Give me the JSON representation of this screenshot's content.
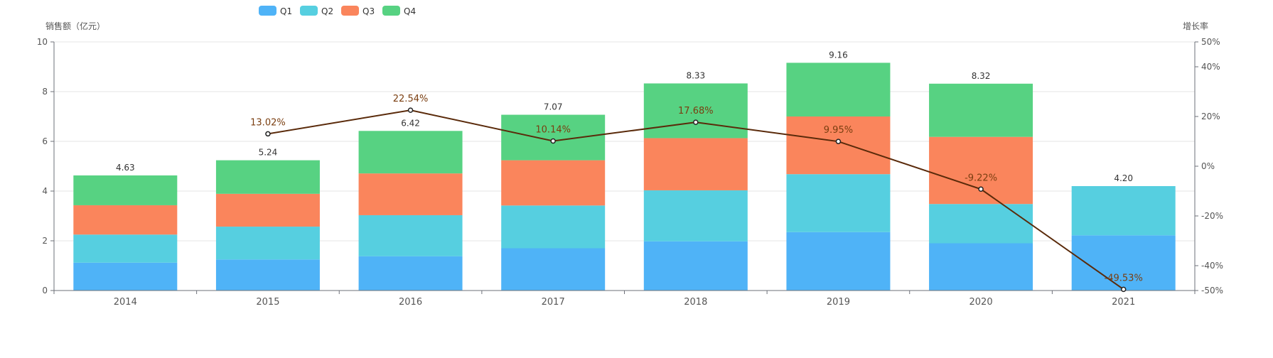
{
  "chart_data": {
    "type": "bar",
    "stacked": true,
    "categories": [
      "2014",
      "2015",
      "2016",
      "2017",
      "2018",
      "2019",
      "2020",
      "2021"
    ],
    "series": [
      {
        "name": "Q1",
        "color": "#4FB3F7",
        "values": [
          1.12,
          1.25,
          1.38,
          1.7,
          1.98,
          2.35,
          1.9,
          2.22
        ]
      },
      {
        "name": "Q2",
        "color": "#56CFE0",
        "values": [
          1.13,
          1.32,
          1.65,
          1.72,
          2.05,
          2.33,
          1.58,
          1.98
        ]
      },
      {
        "name": "Q3",
        "color": "#FA855C",
        "values": [
          1.18,
          1.32,
          1.68,
          1.82,
          2.1,
          2.32,
          2.7,
          0
        ]
      },
      {
        "name": "Q4",
        "color": "#57D282",
        "values": [
          1.2,
          1.35,
          1.71,
          1.83,
          2.2,
          2.16,
          2.14,
          0
        ]
      }
    ],
    "totals": [
      "4.63",
      "5.24",
      "6.42",
      "7.07",
      "8.33",
      "9.16",
      "8.32",
      "4.20"
    ],
    "growth": {
      "name": "增长率",
      "color": "#5A2A0A",
      "label_color": "#7A3E10",
      "values": [
        null,
        13.02,
        22.54,
        10.14,
        17.68,
        9.95,
        -9.22,
        -49.53
      ],
      "labels": [
        "",
        "13.02%",
        "22.54%",
        "10.14%",
        "17.68%",
        "9.95%",
        "-9.22%",
        "-49.53%"
      ]
    },
    "y_left": {
      "label": "销售额（亿元）",
      "ylim": [
        0,
        10
      ],
      "ticks": [
        "0",
        "2",
        "4",
        "6",
        "8",
        "10"
      ]
    },
    "y_right": {
      "label": "增长率",
      "ylim": [
        -50,
        50
      ],
      "ticks": [
        {
          "value": -50,
          "label": "-50%"
        },
        {
          "value": -40,
          "label": "-40%"
        },
        {
          "value": -20,
          "label": "-20%"
        },
        {
          "value": 0,
          "label": "0%"
        },
        {
          "value": 20,
          "label": "20%"
        },
        {
          "value": 40,
          "label": "40%"
        },
        {
          "value": 50,
          "label": "50%"
        }
      ]
    },
    "legend_position": "top-left",
    "grid": true
  }
}
